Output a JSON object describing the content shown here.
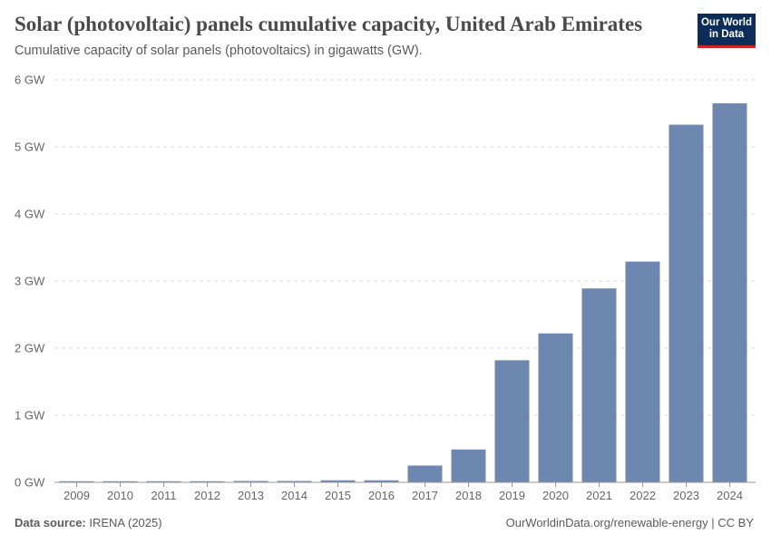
{
  "header": {
    "title": "Solar (photovoltaic) panels cumulative capacity, United Arab Emirates",
    "subtitle": "Cumulative capacity of solar panels (photovoltaics) in gigawatts (GW)."
  },
  "logo": {
    "line1": "Our World",
    "line2": "in Data"
  },
  "footer": {
    "source_label": "Data source:",
    "source_value": "IRENA (2025)",
    "link": "OurWorldinData.org/renewable-energy | CC BY"
  },
  "colors": {
    "bar": "#6d87b0",
    "grid": "#dddddd",
    "axis": "#999999",
    "logo_bg": "#0c2d5a",
    "logo_accent": "#ce261e"
  },
  "chart_data": {
    "type": "bar",
    "title": "Solar (photovoltaic) panels cumulative capacity, United Arab Emirates",
    "xlabel": "",
    "ylabel": "GW",
    "unit_suffix": " GW",
    "ylim": [
      0,
      6
    ],
    "yticks": [
      0,
      1,
      2,
      3,
      4,
      5,
      6
    ],
    "categories": [
      "2009",
      "2010",
      "2011",
      "2012",
      "2013",
      "2014",
      "2015",
      "2016",
      "2017",
      "2018",
      "2019",
      "2020",
      "2021",
      "2022",
      "2023",
      "2024"
    ],
    "values": [
      0.01,
      0.01,
      0.01,
      0.01,
      0.02,
      0.02,
      0.03,
      0.03,
      0.25,
      0.49,
      1.82,
      2.22,
      2.89,
      3.29,
      5.33,
      5.65
    ],
    "grid": true
  }
}
